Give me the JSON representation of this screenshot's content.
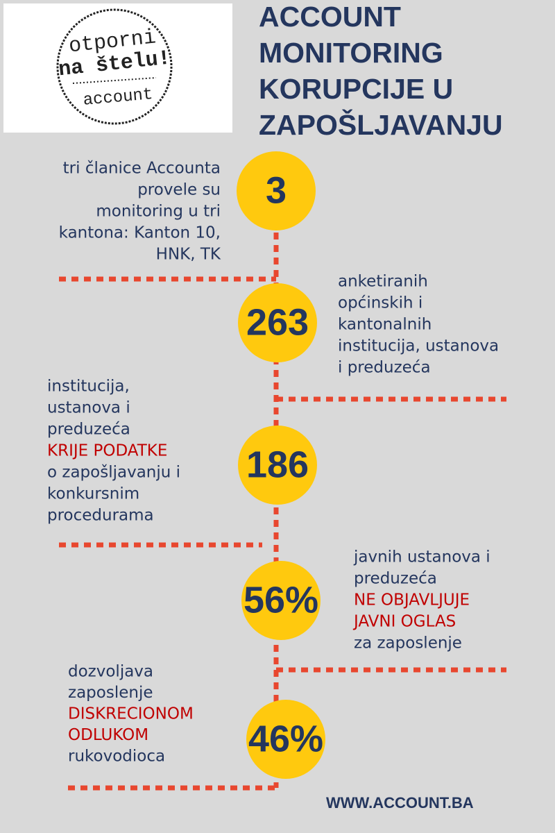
{
  "logo": {
    "lines": [
      "otporni",
      "na štelu!",
      "account"
    ]
  },
  "header": {
    "title_lines": [
      "ACCOUNT",
      "MONITORING",
      "KORUPCIJE U",
      "ZAPOŠLJAVANJU"
    ]
  },
  "items": [
    {
      "number": "3",
      "lines": [
        {
          "text": "tri članice Accounta",
          "color": "#24365e"
        },
        {
          "text": "provele su",
          "color": "#24365e"
        },
        {
          "text": "monitoring u tri",
          "color": "#24365e"
        },
        {
          "text": "kantona: Kanton 10,",
          "color": "#24365e"
        },
        {
          "text": "HNK, TK",
          "color": "#24365e"
        }
      ]
    },
    {
      "number": "263",
      "lines": [
        {
          "text": "anketiranih",
          "color": "#24365e"
        },
        {
          "text": "općinskih i",
          "color": "#24365e"
        },
        {
          "text": "kantonalnih",
          "color": "#24365e"
        },
        {
          "text": "institucija, ustanova",
          "color": "#24365e"
        },
        {
          "text": "i preduzeća",
          "color": "#24365e"
        }
      ]
    },
    {
      "number": "186",
      "lines": [
        {
          "text": "institucija,",
          "color": "#24365e"
        },
        {
          "text": "ustanova i",
          "color": "#24365e"
        },
        {
          "text": "preduzeća",
          "color": "#24365e"
        },
        {
          "text": "KRIJE PODATKE",
          "color": "#c00000"
        },
        {
          "text": "o zapošljavanju i",
          "color": "#24365e"
        },
        {
          "text": "konkursnim",
          "color": "#24365e"
        },
        {
          "text": "procedurama",
          "color": "#24365e"
        }
      ]
    },
    {
      "number": "56%",
      "lines": [
        {
          "text": "javnih ustanova i",
          "color": "#24365e"
        },
        {
          "text": "preduzeća",
          "color": "#24365e"
        },
        {
          "text": "NE OBJAVLJUJE",
          "color": "#c00000"
        },
        {
          "text": "JAVNI OGLAS",
          "color": "#c00000"
        },
        {
          "text": "za zaposlenje",
          "color": "#24365e"
        }
      ]
    },
    {
      "number": "46%",
      "lines": [
        {
          "text": "dozvoljava",
          "color": "#24365e"
        },
        {
          "text": "zaposlenje",
          "color": "#24365e"
        },
        {
          "text": "DISKRECIONOM",
          "color": "#c00000"
        },
        {
          "text": "ODLUKOM",
          "color": "#c00000"
        },
        {
          "text": "rukovodioca",
          "color": "#24365e"
        }
      ]
    }
  ],
  "footer": {
    "url": "WWW.ACCOUNT.BA"
  }
}
